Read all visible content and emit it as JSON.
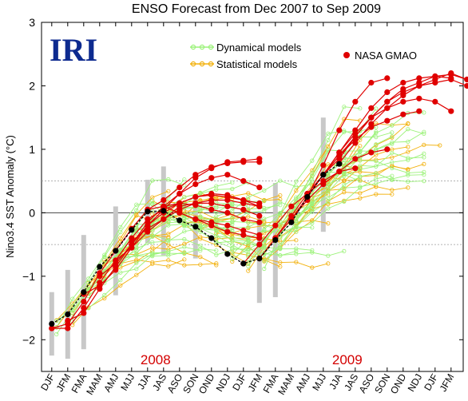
{
  "chart_data": {
    "type": "line",
    "title": "ENSO Forecast from Dec 2007 to Sep 2009",
    "logo": "IRI",
    "ylabel": "Nino3.4 SST Anomaly (°C)",
    "ylim": [
      -2.5,
      3
    ],
    "yticks": [
      "−2",
      "−1",
      "0",
      "1",
      "2",
      "3"
    ],
    "ytick_values": [
      -2,
      -1,
      0,
      1,
      2,
      3
    ],
    "categories": [
      "DJF",
      "JFM",
      "FMA",
      "MAM",
      "AMJ",
      "MJJ",
      "JJA",
      "JAS",
      "ASO",
      "SON",
      "OND",
      "NDJ",
      "DJF",
      "JFM",
      "FMA",
      "MAM",
      "AMJ",
      "MJJ",
      "JJA",
      "JAS",
      "ASO",
      "SON",
      "OND",
      "NDJ",
      "DJF",
      "JFM"
    ],
    "year_labels": [
      {
        "text": "2008",
        "at": 6.5
      },
      {
        "text": "2009",
        "at": 18.5
      }
    ],
    "legend": {
      "dynamical": "Dynamical models",
      "statistical": "Statistical models",
      "nasa": "NASA GMAO"
    },
    "colors": {
      "dynamical": "#9cf27a",
      "statistical": "#f2b10d",
      "nasa": "#e00000",
      "observed": "#000000",
      "bars": "#c8c8c8",
      "logo": "#0d2a8f",
      "years": "#d40000"
    },
    "observed": {
      "name": "Observed",
      "x": [
        0,
        1,
        2,
        3,
        4,
        5,
        6,
        7,
        8,
        9,
        10,
        11,
        12,
        13,
        14,
        15,
        16,
        17,
        18
      ],
      "y": [
        -1.75,
        -1.6,
        -1.25,
        -0.85,
        -0.6,
        -0.27,
        0.02,
        0.03,
        -0.12,
        -0.22,
        -0.4,
        -0.65,
        -0.8,
        -0.72,
        -0.43,
        -0.15,
        0.25,
        0.6,
        0.77
      ]
    },
    "nasa_forecasts": [
      {
        "start": 0,
        "y": [
          -1.82,
          -1.82,
          -1.5,
          -1.1,
          -0.75,
          -0.4,
          -0.1,
          0.05,
          0.3,
          0.55,
          0.7,
          0.8,
          0.82,
          0.85
        ]
      },
      {
        "start": 0,
        "y": [
          -1.82,
          -1.75,
          -1.4,
          -0.95,
          -0.6,
          -0.25,
          0.05,
          0.2,
          0.4,
          0.6,
          0.72,
          0.78,
          0.8,
          0.8
        ]
      },
      {
        "start": 1,
        "y": [
          -1.7,
          -1.58,
          -1.2,
          -0.85,
          -0.5,
          -0.15,
          0.1,
          0.3,
          0.45,
          0.55,
          0.6,
          0.5,
          0.4
        ]
      },
      {
        "start": 2,
        "y": [
          -1.28,
          -1.15,
          -0.9,
          -0.55,
          -0.2,
          0.0,
          0.15,
          0.25,
          0.3,
          0.28,
          0.2,
          0.1
        ]
      },
      {
        "start": 3,
        "y": [
          -1.0,
          -0.8,
          -0.5,
          -0.2,
          0.05,
          0.15,
          0.25,
          0.28,
          0.25,
          0.2,
          0.15
        ]
      },
      {
        "start": 4,
        "y": [
          -0.75,
          -0.55,
          -0.3,
          -0.1,
          0.05,
          0.15,
          0.2,
          0.2,
          0.15,
          0.1
        ]
      },
      {
        "start": 5,
        "y": [
          -0.45,
          -0.25,
          -0.1,
          0.1,
          0.15,
          0.15,
          0.1,
          0.05,
          -0.05
        ]
      },
      {
        "start": 6,
        "y": [
          0.05,
          0.1,
          0.15,
          0.12,
          0.05,
          0.0,
          -0.1,
          -0.15
        ]
      },
      {
        "start": 7,
        "y": [
          0.1,
          0.0,
          -0.1,
          -0.15,
          -0.2,
          -0.28,
          -0.35
        ]
      },
      {
        "start": 8,
        "y": [
          0.0,
          -0.1,
          -0.2,
          -0.3,
          -0.35,
          -0.4
        ]
      },
      {
        "start": 12,
        "y": [
          -0.8,
          -0.5,
          -0.2,
          0.1,
          0.3,
          0.5,
          0.65,
          0.7
        ]
      },
      {
        "start": 13,
        "y": [
          -0.72,
          -0.4,
          -0.1,
          0.2,
          0.45,
          0.65,
          0.85,
          0.95,
          1.0
        ]
      },
      {
        "start": 14,
        "y": [
          -0.4,
          -0.05,
          0.3,
          0.6,
          0.9,
          1.15,
          1.35,
          1.45,
          1.55,
          1.6
        ]
      },
      {
        "start": 15,
        "y": [
          -0.1,
          0.25,
          0.6,
          0.95,
          1.25,
          1.5,
          1.65,
          1.75,
          1.8,
          1.75,
          1.6
        ]
      },
      {
        "start": 16,
        "y": [
          0.25,
          0.6,
          0.9,
          1.2,
          1.5,
          1.75,
          1.9,
          2.0,
          2.05,
          2.1,
          2.0
        ]
      },
      {
        "start": 16,
        "y": [
          0.25,
          0.75,
          1.3,
          1.75,
          2.05,
          2.12
        ]
      },
      {
        "start": 17,
        "y": [
          0.6,
          0.95,
          1.3,
          1.65,
          1.9,
          2.05,
          2.12,
          2.15,
          2.12
        ]
      },
      {
        "start": 17,
        "y": [
          0.6,
          0.85,
          1.2,
          1.5,
          1.75,
          1.95,
          2.05,
          2.15,
          2.18,
          2.1
        ]
      },
      {
        "start": 18,
        "y": [
          0.78,
          1.1,
          1.4,
          1.65,
          1.85,
          2.0,
          2.1,
          2.2,
          2.1,
          1.88
        ]
      }
    ]
  }
}
